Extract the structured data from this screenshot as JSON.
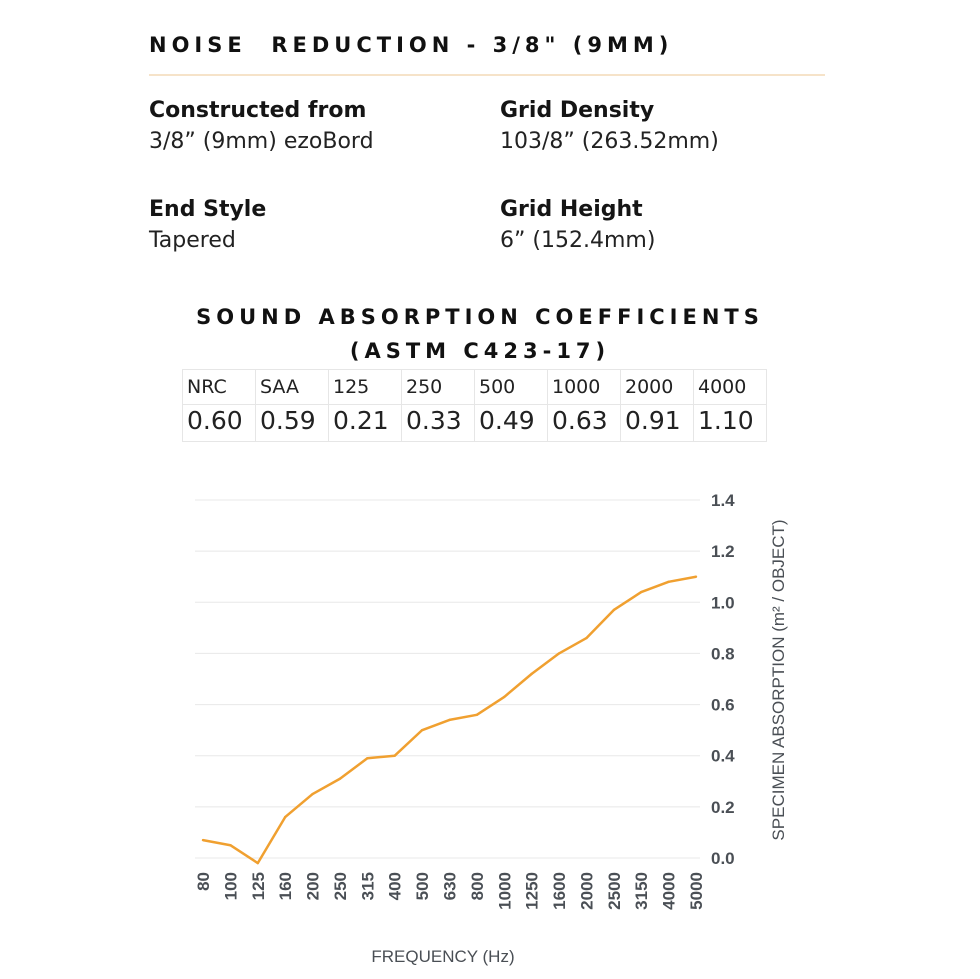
{
  "header": {
    "title": "NOISE  REDUCTION - 3/8\" (9MM)"
  },
  "specs": [
    {
      "label": "Constructed from",
      "value": "3/8” (9mm) ezoBord"
    },
    {
      "label": "Grid Density",
      "value": "103/8” (263.52mm)"
    },
    {
      "label": "End Style",
      "value": "Tapered"
    },
    {
      "label": "Grid Height",
      "value": "6” (152.4mm)"
    }
  ],
  "coefficients": {
    "title_line1": "SOUND ABSORPTION COEFFICIENTS",
    "title_line2": "(ASTM C423-17)",
    "headers": [
      "NRC",
      "SAA",
      "125",
      "250",
      "500",
      "1000",
      "2000",
      "4000"
    ],
    "values": [
      "0.60",
      "0.59",
      "0.21",
      "0.33",
      "0.49",
      "0.63",
      "0.91",
      "1.10"
    ]
  },
  "chart_data": {
    "type": "line",
    "title": "",
    "xlabel": "FREQUENCY (Hz)",
    "ylabel": "SPECIMEN ABSORPTION (m² / OBJECT)",
    "categories": [
      "80",
      "100",
      "125",
      "160",
      "200",
      "250",
      "315",
      "400",
      "500",
      "630",
      "800",
      "1000",
      "1250",
      "1600",
      "2000",
      "2500",
      "3150",
      "4000",
      "5000"
    ],
    "series": [
      {
        "values": [
          0.07,
          0.05,
          -0.02,
          0.16,
          0.25,
          0.31,
          0.39,
          0.4,
          0.5,
          0.54,
          0.56,
          0.63,
          0.72,
          0.8,
          0.86,
          0.97,
          1.04,
          1.08,
          1.1
        ]
      }
    ],
    "yticks": [
      "0.0",
      "0.2",
      "0.4",
      "0.6",
      "0.8",
      "1.0",
      "1.2",
      "1.4"
    ],
    "ylim": [
      0,
      1.4
    ],
    "grid": true,
    "y_axis_side": "right",
    "line_color": "#f0a030",
    "grid_color": "#e8e8e8",
    "tick_color": "#4a4f55"
  }
}
